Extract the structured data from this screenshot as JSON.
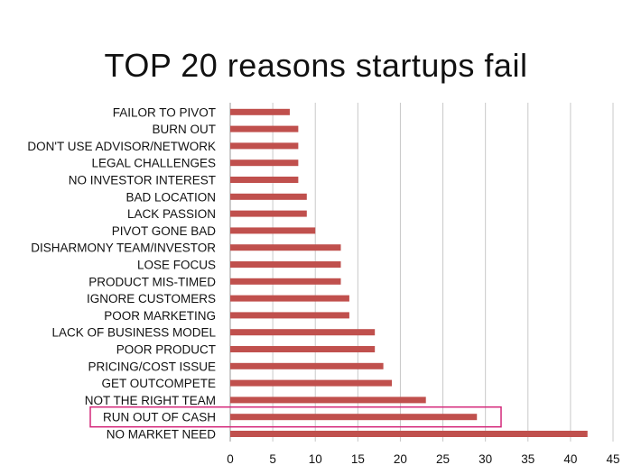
{
  "chart_data": {
    "type": "bar",
    "orientation": "horizontal",
    "title": "TOP 20 reasons startups fail",
    "xlabel": "",
    "ylabel": "",
    "xlim": [
      0,
      45
    ],
    "x_ticks": [
      0,
      5,
      10,
      15,
      20,
      25,
      30,
      35,
      40,
      45
    ],
    "grid": "vertical",
    "bar_color": "#c0504d",
    "highlight_color": "#d4287a",
    "highlight_category": "RUN OUT OF CASH",
    "categories": [
      "NO MARKET NEED",
      "RUN OUT OF CASH",
      "NOT THE RIGHT TEAM",
      "GET OUTCOMPETE",
      "PRICING/COST ISSUE",
      "POOR PRODUCT",
      "LACK OF BUSINESS MODEL",
      "POOR MARKETING",
      "IGNORE CUSTOMERS",
      "PRODUCT MIS-TIMED",
      "LOSE FOCUS",
      "DISHARMONY TEAM/INVESTOR",
      "PIVOT GONE BAD",
      "LACK PASSION",
      "BAD LOCATION",
      "NO INVESTOR INTEREST",
      "LEGAL CHALLENGES",
      "DON'T USE ADVISOR/NETWORK",
      "BURN OUT",
      "FAILOR TO PIVOT"
    ],
    "values": [
      42,
      29,
      23,
      19,
      18,
      17,
      17,
      14,
      14,
      13,
      13,
      13,
      10,
      9,
      9,
      8,
      8,
      8,
      8,
      7
    ]
  }
}
